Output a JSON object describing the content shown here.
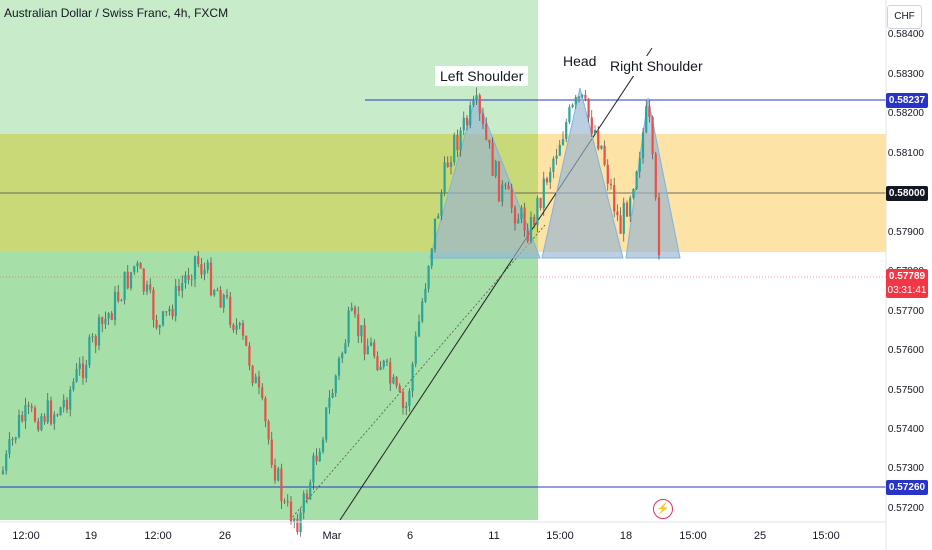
{
  "header": {
    "title": "Australian Dollar / Swiss Franc, 4h, FXCM"
  },
  "axis": {
    "currency": "CHF",
    "y_ticks": [
      "0.58400",
      "0.58300",
      "0.58200",
      "0.58100",
      "0.58000",
      "0.57900",
      "0.57800",
      "0.57700",
      "0.57600",
      "0.57500",
      "0.57400",
      "0.57300",
      "0.57200"
    ],
    "x_ticks": [
      "12:00",
      "19",
      "12:00",
      "26",
      "Mar",
      "6",
      "11",
      "15:00",
      "18",
      "15:00",
      "25",
      "15:00"
    ]
  },
  "annotations": {
    "left_shoulder": "Left Shoulder",
    "head": "Head",
    "right_shoulder": "Right Shoulder"
  },
  "price_labels": {
    "top_line": "0.58237",
    "middle_line": "0.58000",
    "current_price": "0.57789",
    "countdown": "03:31:41",
    "bottom_line": "0.57260"
  },
  "colors": {
    "up": "#26a69a",
    "down": "#e8504a",
    "green_zone": "#9fd9a1",
    "yellow_zone": "#fbd98a",
    "blue_line": "#2834c8",
    "current": "#f23645"
  },
  "chart_data": {
    "type": "candlestick",
    "symbol": "AUD/CHF",
    "timeframe": "4h",
    "ylim": [
      0.5718,
      0.5845
    ],
    "levels": [
      0.58237,
      0.58,
      0.5726
    ],
    "current_price": 0.57789,
    "zones": [
      {
        "from": 0.57855,
        "to": 0.5815
      }
    ],
    "pattern": "head and shoulders"
  }
}
